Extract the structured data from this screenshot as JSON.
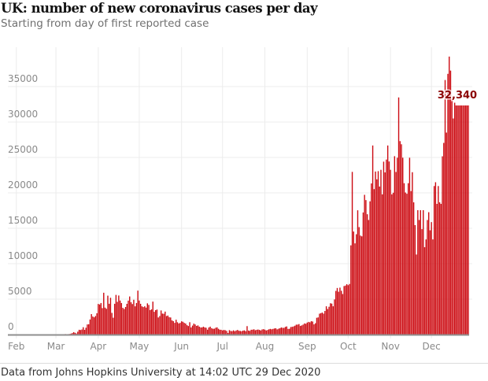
{
  "header": {
    "title": "UK: number of new coronavirus cases per day",
    "subtitle": "Starting from day of first reported case"
  },
  "footer": {
    "source": "Data from Johns Hopkins University at 14:02 UTC 29 Dec 2020"
  },
  "colors": {
    "bar": "#cc0a11",
    "annotation": "#8b0000"
  },
  "chart_data": {
    "type": "bar",
    "title": "UK: number of new coronavirus cases per day",
    "subtitle": "Starting from day of first reported case",
    "xlabel": "",
    "ylabel": "",
    "x_start_date": "2020-01-31",
    "x_end_date": "2020-12-28",
    "ylim": [
      0,
      35000
    ],
    "yticks": [
      0,
      5000,
      10000,
      15000,
      20000,
      25000,
      30000,
      35000
    ],
    "ytick_labels": [
      "0",
      "5000",
      "10000",
      "15000",
      "20000",
      "25000",
      "30000",
      "35000"
    ],
    "xtick_labels": [
      "Feb",
      "Mar",
      "Apr",
      "May",
      "Jun",
      "Jul",
      "Aug",
      "Sep",
      "Oct",
      "Nov",
      "Dec"
    ],
    "xtick_day_index": [
      1,
      30,
      61,
      91,
      122,
      152,
      183,
      214,
      244,
      275,
      305
    ],
    "grid": true,
    "annotation": {
      "text": "32,340",
      "day_index": 332,
      "value": 32340
    },
    "values": [
      2,
      0,
      0,
      0,
      0,
      0,
      1,
      0,
      1,
      0,
      4,
      0,
      1,
      0,
      0,
      0,
      0,
      0,
      0,
      0,
      0,
      0,
      0,
      0,
      0,
      0,
      4,
      2,
      5,
      3,
      13,
      4,
      11,
      34,
      29,
      48,
      45,
      69,
      43,
      62,
      77,
      130,
      208,
      342,
      251,
      152,
      407,
      676,
      643,
      714,
      1035,
      665,
      967,
      1427,
      1452,
      2129,
      2885,
      2546,
      2433,
      2619,
      3009,
      4324,
      4244,
      4450,
      3735,
      5903,
      3802,
      3634,
      5491,
      4344,
      5195,
      3059,
      2379,
      4342,
      5599,
      4617,
      5512,
      4802,
      4451,
      3773,
      3604,
      3888,
      4339,
      4791,
      5377,
      4566,
      4307,
      4911,
      3985,
      4450,
      6201,
      4806,
      4339,
      3985,
      3877,
      3990,
      3801,
      4406,
      4184,
      3450,
      3560,
      4649,
      3211,
      3446,
      3534,
      2412,
      2615,
      3403,
      2959,
      2940,
      3240,
      2615,
      2684,
      2445,
      2412,
      2004,
      1887,
      1654,
      2095,
      1736,
      1570,
      1653,
      1871,
      1805,
      1650,
      1557,
      1326,
      1205,
      1741,
      1003,
      1266,
      1541,
      1425,
      1221,
      1295,
      1114,
      1002,
      1006,
      1115,
      1004,
      963,
      689,
      998,
      1116,
      901,
      815,
      829,
      962,
      1019,
      814,
      689,
      672,
      587,
      652,
      612,
      520,
      230,
      624,
      516,
      477,
      597,
      472,
      576,
      650,
      532,
      512,
      470,
      556,
      592,
      478,
      1191,
      569,
      520,
      677,
      690,
      745,
      611,
      672,
      712,
      657,
      582,
      721,
      762,
      695,
      580,
      650,
      745,
      801,
      742,
      802,
      857,
      892,
      735,
      825,
      888,
      1001,
      953,
      942,
      1080,
      1148,
      802,
      812,
      1062,
      1094,
      1148,
      1249,
      1396,
      1406,
      1478,
      1215,
      1293,
      1402,
      1571,
      1520,
      1690,
      1790,
      1728,
      1889,
      1837,
      1441,
      1599,
      2368,
      2420,
      2947,
      3021,
      3105,
      2950,
      3330,
      3991,
      3604,
      3926,
      4417,
      4368,
      3990,
      4960,
      6159,
      6573,
      6043,
      6624,
      6178,
      5722,
      6843,
      6914,
      7108,
      6968,
      7143,
      12594,
      22961,
      14542,
      12872,
      14162,
      17540,
      15166,
      13972,
      13864,
      17234,
      19724,
      18980,
      16982,
      16171,
      18804,
      21330,
      26688,
      20530,
      23012,
      21915,
      23065,
      20890,
      23254,
      19790,
      24405,
      22890,
      24701,
      26688,
      24430,
      23254,
      19790,
      20018,
      25177,
      22950,
      24957,
      33470,
      27301,
      26860,
      24962,
      21363,
      20051,
      19875,
      21363,
      24957,
      20252,
      22915,
      18662,
      15450,
      11299,
      17555,
      16170,
      17555,
      14879,
      17555,
      12330,
      13430,
      16170,
      17272,
      14718,
      15871,
      13430,
      20964,
      21502,
      18447,
      20964,
      18662,
      18447,
      25161,
      27052,
      35928,
      28507,
      36804,
      39237,
      37258,
      33364,
      30501,
      32725,
      32340,
      32340,
      32340,
      32340,
      32340,
      32340,
      32340,
      32340,
      32340,
      32340
    ]
  }
}
